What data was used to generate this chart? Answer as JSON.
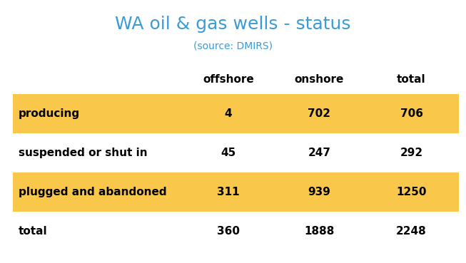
{
  "title": "WA oil & gas wells - status",
  "subtitle": "(source: DMIRS)",
  "title_color": "#3A9BD5",
  "subtitle_color": "#3A9BD5",
  "col_headers": [
    "offshore",
    "onshore",
    "total"
  ],
  "row_labels": [
    "producing",
    "suspended or shut in",
    "plugged and abandoned",
    "total"
  ],
  "table_data": [
    [
      "4",
      "702",
      "706"
    ],
    [
      "45",
      "247",
      "292"
    ],
    [
      "311",
      "939",
      "1250"
    ],
    [
      "360",
      "1888",
      "2248"
    ]
  ],
  "highlighted_rows": [
    0,
    2
  ],
  "highlight_color": "#F9C84A",
  "background_color": "#FFFFFF",
  "text_color": "#000000",
  "title_fontsize": 18,
  "subtitle_fontsize": 10,
  "header_fontsize": 11,
  "cell_fontsize": 11,
  "row_label_fontsize": 11,
  "fig_width": 6.53,
  "fig_height": 3.69,
  "dpi": 100
}
